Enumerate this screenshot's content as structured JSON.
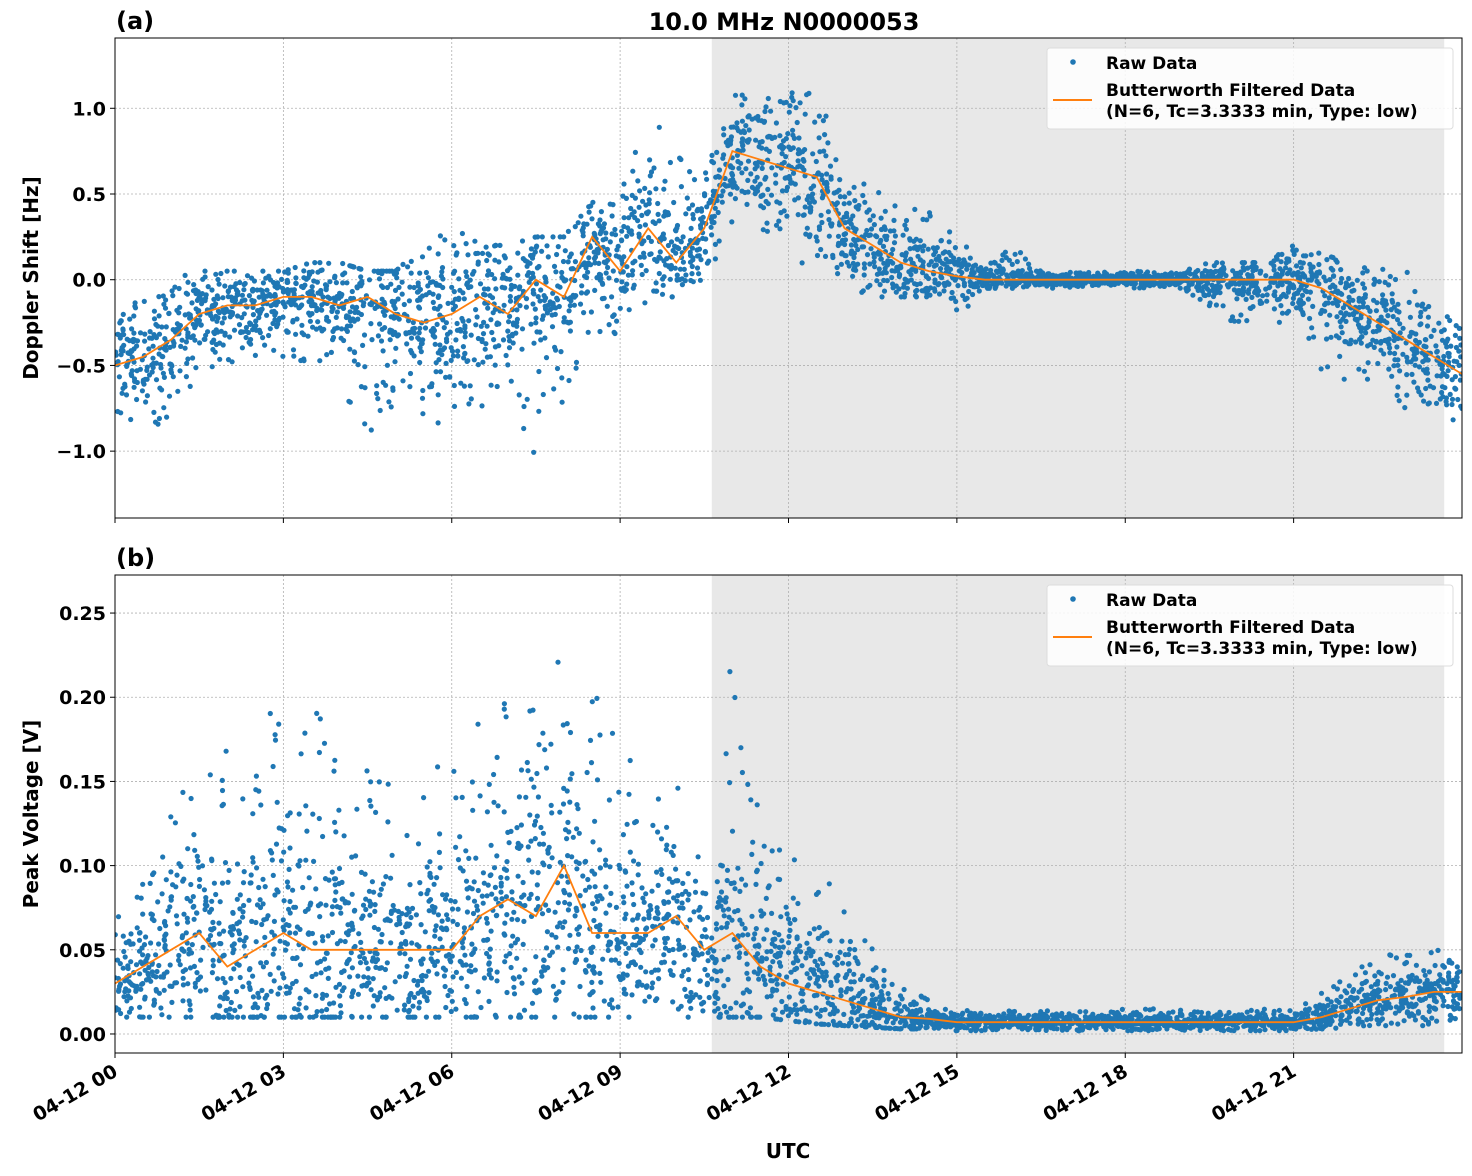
{
  "title": "10.0 MHz N0000053",
  "xlabel": "UTC",
  "x_tick_labels": [
    "04-12 00",
    "04-12 03",
    "04-12 06",
    "04-12 09",
    "04-12 12",
    "04-12 15",
    "04-12 18",
    "04-12 21"
  ],
  "colors": {
    "raw": "#1f77b4",
    "filtered": "#ff7f0e",
    "shade": "#e8e8e8",
    "grid": "#b0b0b0"
  },
  "chart_data": [
    {
      "type": "scatter",
      "panel_label": "(a)",
      "ylabel": "Doppler Shift [Hz]",
      "ylim": [
        -1.39,
        1.41
      ],
      "y_ticks": [
        -1.0,
        -0.5,
        0.0,
        0.5,
        1.0
      ],
      "y_tick_labels": [
        "−1.0",
        "−0.5",
        "0.0",
        "0.5",
        "1.0"
      ],
      "xlim": [
        "04-12 00:00",
        "04-13 00:00"
      ],
      "grid": true,
      "legend_position": "top-right",
      "legend": [
        "Raw Data",
        "Butterworth Filtered Data",
        "(N=6, Tc=3.3333 min, Type: low)"
      ],
      "shaded_interval": [
        "04-12 10:38",
        "04-12 23:41"
      ],
      "x": [
        "04-12 00:00",
        "04-12 00:30",
        "04-12 01:00",
        "04-12 01:30",
        "04-12 02:00",
        "04-12 02:30",
        "04-12 03:00",
        "04-12 03:30",
        "04-12 04:00",
        "04-12 04:30",
        "04-12 05:00",
        "04-12 05:30",
        "04-12 06:00",
        "04-12 06:30",
        "04-12 07:00",
        "04-12 07:30",
        "04-12 08:00",
        "04-12 08:30",
        "04-12 09:00",
        "04-12 09:30",
        "04-12 10:00",
        "04-12 10:30",
        "04-12 11:00",
        "04-12 11:30",
        "04-12 12:00",
        "04-12 12:30",
        "04-12 13:00",
        "04-12 13:30",
        "04-12 14:00",
        "04-12 14:30",
        "04-12 15:00",
        "04-12 15:30",
        "04-12 16:00",
        "04-12 16:30",
        "04-12 17:00",
        "04-12 17:30",
        "04-12 18:00",
        "04-12 18:30",
        "04-12 19:00",
        "04-12 19:30",
        "04-12 20:00",
        "04-12 20:30",
        "04-12 21:00",
        "04-12 21:30",
        "04-12 22:00",
        "04-12 22:30",
        "04-12 23:00",
        "04-12 23:30",
        "04-13 00:00"
      ],
      "series": [
        {
          "name": "Butterworth Filtered Data",
          "kind": "line",
          "values": [
            -0.5,
            -0.45,
            -0.35,
            -0.2,
            -0.15,
            -0.15,
            -0.1,
            -0.1,
            -0.15,
            -0.1,
            -0.2,
            -0.25,
            -0.2,
            -0.1,
            -0.2,
            0.0,
            -0.1,
            0.25,
            0.05,
            0.3,
            0.1,
            0.3,
            0.75,
            0.7,
            0.65,
            0.6,
            0.3,
            0.2,
            0.1,
            0.05,
            0.02,
            0.0,
            0.0,
            0.0,
            0.0,
            0.0,
            0.0,
            0.0,
            0.0,
            0.0,
            0.0,
            0.0,
            0.0,
            -0.05,
            -0.15,
            -0.25,
            -0.35,
            -0.45,
            -0.55
          ]
        },
        {
          "name": "Raw Data",
          "kind": "scatter-range",
          "low": [
            -0.85,
            -0.9,
            -0.8,
            -0.6,
            -0.5,
            -0.45,
            -0.45,
            -0.5,
            -0.6,
            -1.0,
            -0.75,
            -0.8,
            -0.9,
            -0.95,
            -0.7,
            -1.1,
            -0.75,
            -0.3,
            -0.4,
            -0.1,
            -0.1,
            0.0,
            0.3,
            0.25,
            0.15,
            0.0,
            -0.05,
            -0.1,
            -0.1,
            -0.1,
            -0.25,
            -0.05,
            -0.05,
            -0.05,
            -0.05,
            -0.05,
            -0.05,
            -0.05,
            -0.05,
            -0.2,
            -0.25,
            -0.3,
            -0.3,
            -0.55,
            -0.6,
            -0.6,
            -0.8,
            -0.85,
            -1.0
          ],
          "high": [
            -0.2,
            -0.1,
            0.0,
            0.05,
            0.05,
            0.05,
            0.05,
            0.1,
            0.1,
            0.05,
            0.05,
            0.2,
            0.35,
            0.2,
            0.2,
            0.25,
            0.25,
            0.45,
            0.5,
            0.95,
            0.8,
            0.6,
            1.15,
            1.05,
            1.1,
            1.15,
            0.6,
            0.55,
            0.5,
            0.45,
            0.25,
            0.08,
            0.2,
            0.05,
            0.05,
            0.05,
            0.05,
            0.05,
            0.05,
            0.1,
            0.1,
            0.1,
            0.2,
            0.15,
            0.1,
            0.1,
            0.05,
            -0.1,
            -0.2
          ]
        }
      ]
    },
    {
      "type": "scatter",
      "panel_label": "(b)",
      "ylabel": "Peak Voltage [V]",
      "ylim": [
        -0.0113,
        0.2726
      ],
      "y_ticks": [
        0.0,
        0.05,
        0.1,
        0.15,
        0.2,
        0.25
      ],
      "y_tick_labels": [
        "0.00",
        "0.05",
        "0.10",
        "0.15",
        "0.20",
        "0.25"
      ],
      "xlim": [
        "04-12 00:00",
        "04-13 00:00"
      ],
      "grid": true,
      "legend_position": "top-right",
      "legend": [
        "Raw Data",
        "Butterworth Filtered Data",
        "(N=6, Tc=3.3333 min, Type: low)"
      ],
      "shaded_interval": [
        "04-12 10:38",
        "04-12 23:41"
      ],
      "x": [
        "04-12 00:00",
        "04-12 00:30",
        "04-12 01:00",
        "04-12 01:30",
        "04-12 02:00",
        "04-12 02:30",
        "04-12 03:00",
        "04-12 03:30",
        "04-12 04:00",
        "04-12 04:30",
        "04-12 05:00",
        "04-12 05:30",
        "04-12 06:00",
        "04-12 06:30",
        "04-12 07:00",
        "04-12 07:30",
        "04-12 08:00",
        "04-12 08:30",
        "04-12 09:00",
        "04-12 09:30",
        "04-12 10:00",
        "04-12 10:30",
        "04-12 11:00",
        "04-12 11:30",
        "04-12 12:00",
        "04-12 12:30",
        "04-12 13:00",
        "04-12 13:30",
        "04-12 14:00",
        "04-12 14:30",
        "04-12 15:00",
        "04-12 15:30",
        "04-12 16:00",
        "04-12 16:30",
        "04-12 17:00",
        "04-12 17:30",
        "04-12 18:00",
        "04-12 18:30",
        "04-12 19:00",
        "04-12 19:30",
        "04-12 20:00",
        "04-12 20:30",
        "04-12 21:00",
        "04-12 21:30",
        "04-12 22:00",
        "04-12 22:30",
        "04-12 23:00",
        "04-12 23:30",
        "04-13 00:00"
      ],
      "series": [
        {
          "name": "Butterworth Filtered Data",
          "kind": "line",
          "values": [
            0.03,
            0.04,
            0.05,
            0.06,
            0.04,
            0.05,
            0.06,
            0.05,
            0.05,
            0.05,
            0.05,
            0.05,
            0.05,
            0.07,
            0.08,
            0.07,
            0.1,
            0.06,
            0.06,
            0.06,
            0.07,
            0.05,
            0.06,
            0.04,
            0.03,
            0.025,
            0.02,
            0.015,
            0.01,
            0.009,
            0.007,
            0.007,
            0.007,
            0.007,
            0.007,
            0.007,
            0.007,
            0.007,
            0.007,
            0.007,
            0.007,
            0.007,
            0.007,
            0.01,
            0.015,
            0.02,
            0.022,
            0.025,
            0.025
          ]
        },
        {
          "name": "Raw Data",
          "kind": "scatter-range",
          "low": [
            0.01,
            0.01,
            0.01,
            0.01,
            0.01,
            0.01,
            0.01,
            0.01,
            0.01,
            0.01,
            0.01,
            0.01,
            0.01,
            0.01,
            0.01,
            0.01,
            0.01,
            0.01,
            0.01,
            0.01,
            0.01,
            0.01,
            0.01,
            0.01,
            0.008,
            0.006,
            0.005,
            0.004,
            0.003,
            0.003,
            0.002,
            0.002,
            0.002,
            0.002,
            0.002,
            0.002,
            0.002,
            0.002,
            0.002,
            0.002,
            0.002,
            0.002,
            0.002,
            0.003,
            0.004,
            0.005,
            0.005,
            0.005,
            0.005
          ],
          "high": [
            0.07,
            0.1,
            0.14,
            0.16,
            0.17,
            0.18,
            0.2,
            0.2,
            0.16,
            0.16,
            0.15,
            0.15,
            0.17,
            0.2,
            0.2,
            0.24,
            0.25,
            0.21,
            0.18,
            0.14,
            0.17,
            0.1,
            0.23,
            0.15,
            0.12,
            0.1,
            0.08,
            0.05,
            0.03,
            0.02,
            0.015,
            0.015,
            0.015,
            0.015,
            0.015,
            0.015,
            0.015,
            0.015,
            0.015,
            0.015,
            0.015,
            0.015,
            0.015,
            0.025,
            0.035,
            0.05,
            0.05,
            0.05,
            0.05
          ]
        }
      ]
    }
  ]
}
